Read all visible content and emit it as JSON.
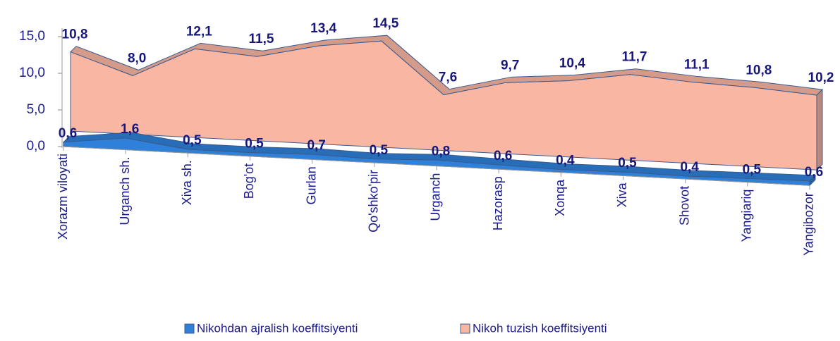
{
  "chart_data": {
    "type": "area3d",
    "categories": [
      "Xorazm viloyati",
      "Urganch sh.",
      "Xiva sh.",
      "Bog'ot",
      "Gurlan",
      "Qo'shko'pir",
      "Urganch",
      "Hazorasp",
      "Xonqa",
      "Xiva",
      "Shovot",
      "Yangiariq",
      "Yangibozor"
    ],
    "series": [
      {
        "name": "Nikohdan ajralish koeffitsiyenti",
        "color": "#2f80d8",
        "values": [
          0.6,
          1.6,
          0.5,
          0.5,
          0.7,
          0.5,
          0.8,
          0.6,
          0.4,
          0.5,
          0.4,
          0.5,
          0.6
        ],
        "value_labels": [
          "0,6",
          "1,6",
          "0,5",
          "0,5",
          "0,7",
          "0,5",
          "0,8",
          "0,6",
          "0,4",
          "0,5",
          "0,4",
          "0,5",
          "0,6"
        ]
      },
      {
        "name": "Nikoh tuzish koeffitsiyenti",
        "color": "#f9b6a3",
        "values": [
          10.8,
          8.0,
          12.1,
          11.5,
          13.4,
          14.5,
          7.6,
          9.7,
          10.4,
          11.7,
          11.1,
          10.8,
          10.2
        ],
        "value_labels": [
          "10,8",
          "8,0",
          "12,1",
          "11,5",
          "13,4",
          "14,5",
          "7,6",
          "9,7",
          "10,4",
          "11,7",
          "11,1",
          "10,8",
          "10,2"
        ]
      }
    ],
    "ylim": [
      0,
      15
    ],
    "yticks": [
      {
        "value": 0,
        "label": "0,0"
      },
      {
        "value": 5,
        "label": "5,0"
      },
      {
        "value": 10,
        "label": "10,0"
      },
      {
        "value": 15,
        "label": "15,0"
      }
    ],
    "legend": "bottom"
  }
}
